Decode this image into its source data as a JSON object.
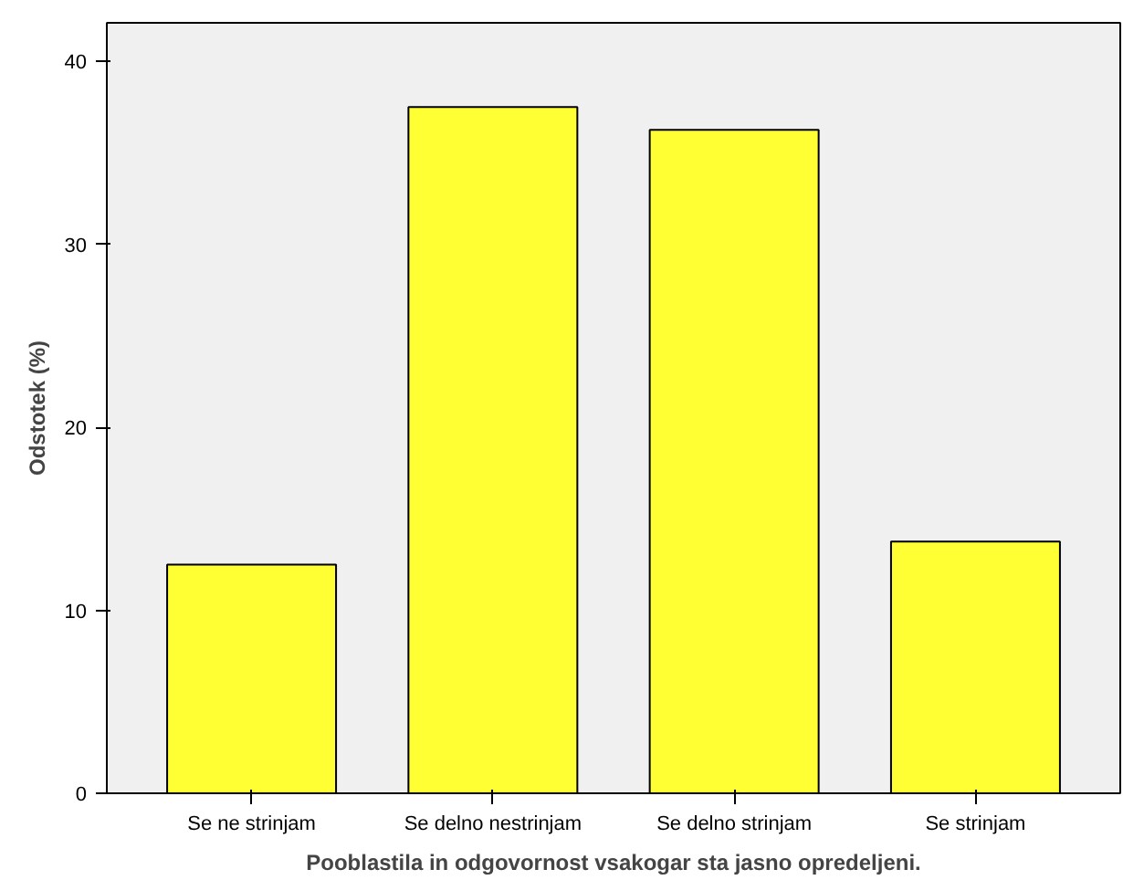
{
  "chart_data": {
    "type": "bar",
    "xlabel": "Pooblastila in odgovornost vsakogar sta jasno opredeljeni.",
    "ylabel": "Odstotek (%)",
    "categories": [
      "Se ne strinjam",
      "Se delno nestrinjam",
      "Se delno strinjam",
      "Se strinjam"
    ],
    "values": [
      12.5,
      37.5,
      36.25,
      13.75
    ],
    "color": "#ffff33",
    "ylim": [
      0,
      42.1
    ],
    "yticks": [
      0,
      10,
      20,
      30,
      40
    ],
    "grid": false
  }
}
